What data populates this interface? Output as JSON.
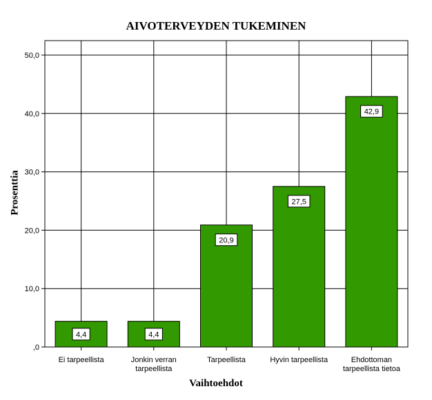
{
  "chart_data": {
    "type": "bar",
    "title": "AIVOTERVEYDEN TUKEMINEN",
    "xlabel": "Vaihtoehdot",
    "ylabel": "Prosenttia",
    "categories": [
      [
        "Ei tarpeellista"
      ],
      [
        "Jonkin verran",
        "tarpeellista"
      ],
      [
        "Tarpeellista"
      ],
      [
        "Hyvin tarpeellista"
      ],
      [
        "Ehdottoman",
        "tarpeellista tietoa"
      ]
    ],
    "values": [
      4.4,
      4.4,
      20.9,
      27.5,
      42.9
    ],
    "data_labels": [
      "4,4",
      "4,4",
      "20,9",
      "27,5",
      "42,9"
    ],
    "ylim": [
      0,
      50
    ],
    "y_ticks": [
      {
        "value": 0,
        "label": ",0"
      },
      {
        "value": 10,
        "label": "10,0"
      },
      {
        "value": 20,
        "label": "20,0"
      },
      {
        "value": 30,
        "label": "30,0"
      },
      {
        "value": 40,
        "label": "40,0"
      },
      {
        "value": 50,
        "label": "50,0"
      }
    ],
    "grid": true,
    "bar_color": "#339900",
    "bar_edge_color": "#000000"
  }
}
